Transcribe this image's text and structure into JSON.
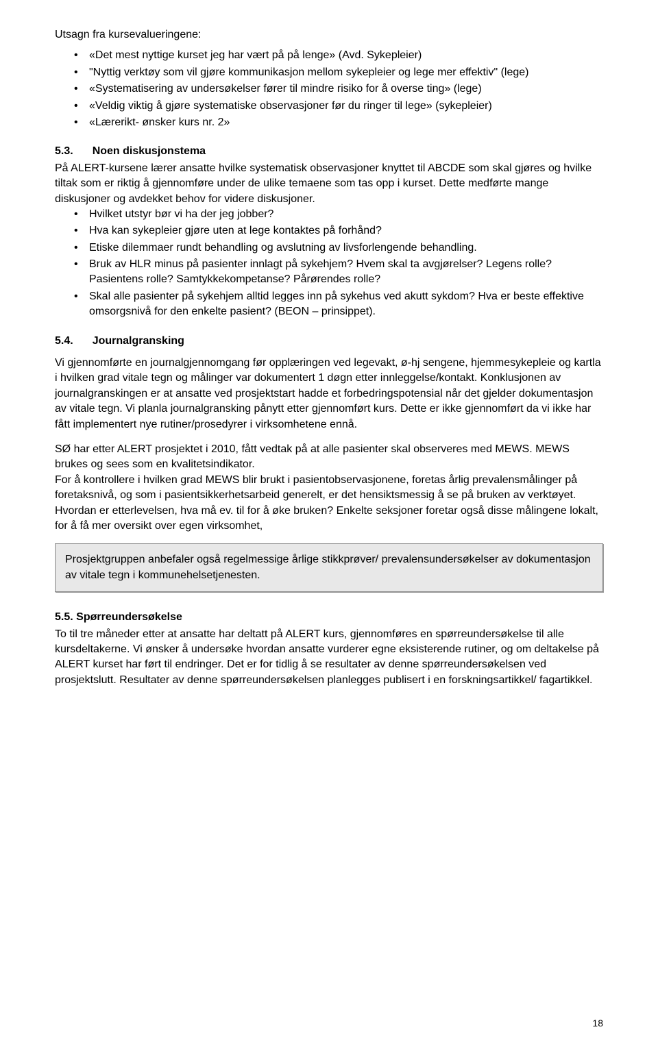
{
  "intro": {
    "heading": "Utsagn fra kursevalueringene:"
  },
  "quotes": [
    "«Det mest nyttige kurset jeg har vært på på lenge» (Avd. Sykepleier)",
    "\"Nyttig verktøy som vil gjøre kommunikasjon mellom sykepleier og lege mer effektiv\" (lege)",
    "«Systematisering av undersøkelser fører til mindre risiko for å overse ting» (lege)",
    "«Veldig viktig å gjøre systematiske observasjoner før du ringer til lege» (sykepleier)",
    "«Lærerikt- ønsker kurs nr. 2»"
  ],
  "section53": {
    "number": "5.3.",
    "title": "Noen diskusjonstema",
    "intro": "På ALERT-kursene lærer ansatte hvilke systematisk observasjoner knyttet til ABCDE som skal gjøres og hvilke tiltak som er riktig å gjennomføre under de ulike temaene som tas opp i kurset. Dette medførte mange diskusjoner og avdekket behov for videre diskusjoner.",
    "bullets": [
      "Hvilket utstyr bør vi ha der jeg jobber?",
      "Hva kan sykepleier gjøre uten at lege kontaktes på forhånd?",
      "Etiske dilemmaer rundt behandling og avslutning av livsforlengende behandling.",
      "Bruk av HLR minus på pasienter innlagt på sykehjem? Hvem skal ta avgjørelser? Legens rolle? Pasientens rolle? Samtykkekompetanse? Pårørendes rolle?",
      "Skal alle pasienter på sykehjem alltid legges inn på sykehus ved akutt sykdom? Hva er beste effektive omsorgsnivå for den enkelte pasient? (BEON – prinsippet)."
    ]
  },
  "section54": {
    "number": "5.4.",
    "title": "Journalgransking",
    "para1": "Vi gjennomførte en journalgjennomgang før opplæringen ved legevakt, ø-hj sengene, hjemmesykepleie og kartla i hvilken grad vitale tegn og målinger var dokumentert 1 døgn etter innleggelse/kontakt.  Konklusjonen av journalgranskingen er at ansatte ved prosjektstart hadde et forbedringspotensial når det gjelder dokumentasjon av vitale tegn. Vi planla journalgransking pånytt etter gjennomført kurs. Dette er ikke gjennomført da vi ikke har fått implementert nye rutiner/prosedyrer i virksomhetene ennå.",
    "para2": "SØ har etter ALERT prosjektet i 2010, fått vedtak på at alle pasienter skal observeres med MEWS. MEWS brukes og sees som en kvalitetsindikator.",
    "para3": "For å kontrollere i hvilken grad MEWS blir brukt i pasientobservasjonene, foretas årlig prevalensmålinger på foretaksnivå, og som i pasientsikkerhetsarbeid generelt, er det hensiktsmessig å se på bruken av verktøyet. Hvordan er etterlevelsen, hva må ev. til for å øke bruken? Enkelte seksjoner foretar også disse målingene lokalt, for å få mer oversikt over egen virksomhet,"
  },
  "callout": {
    "text": "Prosjektgruppen anbefaler også regelmessige årlige stikkprøver/ prevalensundersøkelser av dokumentasjon av vitale tegn i kommunehelsetjenesten."
  },
  "section55": {
    "number": "5.5.",
    "title": "Spørreundersøkelse",
    "para": "To til tre måneder etter at ansatte har deltatt på ALERT kurs, gjennomføres en spørreundersøkelse til alle kursdeltakerne. Vi ønsker å undersøke hvordan ansatte vurderer egne eksisterende rutiner, og om deltakelse på ALERT kurset har ført til endringer. Det er for tidlig å se resultater av denne spørreundersøkelsen ved prosjektslutt. Resultater av denne spørreundersøkelsen planlegges publisert i en forskningsartikkel/ fagartikkel."
  },
  "pageNumber": "18"
}
